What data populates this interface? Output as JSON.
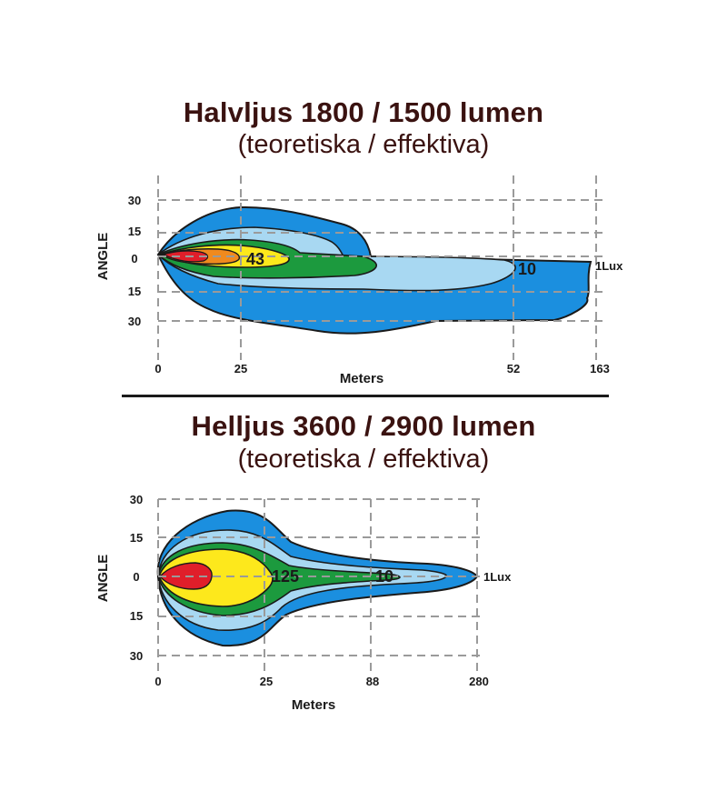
{
  "chart_data": [
    {
      "type": "contour",
      "title": "Halvljus 1800 / 1500 lumen",
      "subtitle": "(teoretiska / effektiva)",
      "xlabel": "Meters",
      "ylabel": "ANGLE",
      "x_ticks": [
        "0",
        "25",
        "52",
        "163"
      ],
      "y_ticks": [
        "30",
        "15",
        "0",
        "15",
        "30"
      ],
      "grid": true,
      "levels": [
        {
          "label": "1Lux",
          "color": "#1b8fdf"
        },
        {
          "label": "10",
          "color": "#a8d8f2"
        },
        {
          "label": "",
          "color": "#1c9a3e"
        },
        {
          "label": "43",
          "color": "#fde81c"
        },
        {
          "label": "",
          "color": "#f08a1e"
        },
        {
          "label": "",
          "color": "#e01e2a"
        }
      ]
    },
    {
      "type": "contour",
      "title": "Helljus 3600 / 2900 lumen",
      "subtitle": "(teoretiska / effektiva)",
      "xlabel": "Meters",
      "ylabel": "ANGLE",
      "x_ticks": [
        "0",
        "25",
        "88",
        "280"
      ],
      "y_ticks": [
        "30",
        "15",
        "0",
        "15",
        "30"
      ],
      "grid": true,
      "levels": [
        {
          "label": "1Lux",
          "color": "#1b8fdf"
        },
        {
          "label": "",
          "color": "#a8d8f2"
        },
        {
          "label": "10",
          "color": "#1c9a3e"
        },
        {
          "label": "125",
          "color": "#fde81c"
        },
        {
          "label": "",
          "color": "#e01e2a"
        }
      ]
    }
  ]
}
